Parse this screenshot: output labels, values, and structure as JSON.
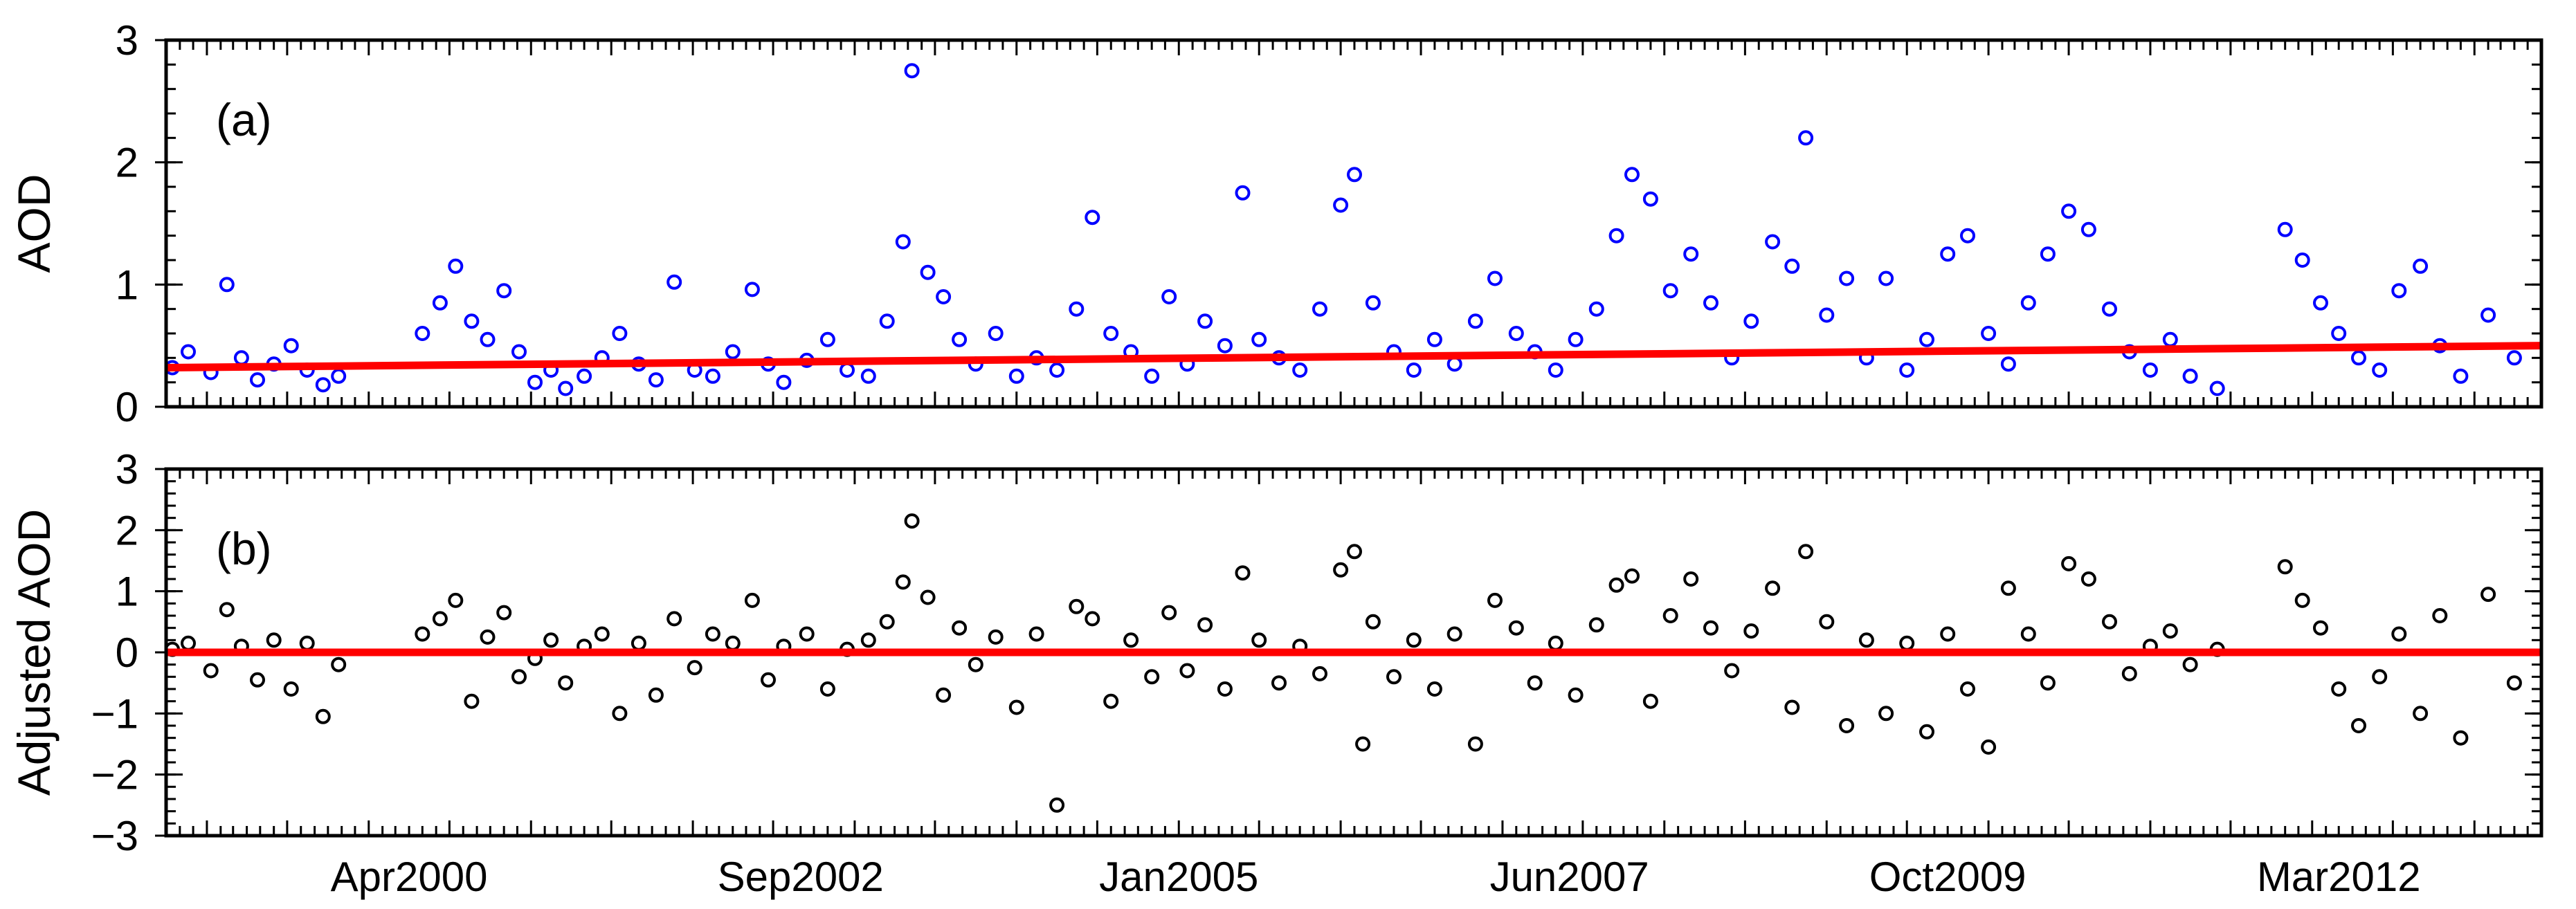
{
  "colors": {
    "panel_a_points": "#0000ff",
    "panel_b_points": "#000000",
    "trend_line": "#ff0000",
    "axis": "#000000",
    "background": "#ffffff"
  },
  "chart_data": [
    {
      "type": "scatter",
      "panel_label": "(a)",
      "title": "",
      "xlabel": "",
      "ylabel": "AOD",
      "xlim": [
        "1998-10-01",
        "2013-06-01"
      ],
      "ylim": [
        0,
        3
      ],
      "yticks": [
        0,
        1,
        2,
        3
      ],
      "grid": false,
      "legend": "none",
      "marker": "open-circle",
      "point_color": "blue",
      "series": [
        {
          "points": [
            [
              "1998-10-15",
              0.32
            ],
            [
              "1998-11-20",
              0.45
            ],
            [
              "1999-01-10",
              0.28
            ],
            [
              "1999-02-15",
              1.0
            ],
            [
              "1999-03-20",
              0.4
            ],
            [
              "1999-04-25",
              0.22
            ],
            [
              "1999-06-01",
              0.35
            ],
            [
              "1999-07-10",
              0.5
            ],
            [
              "1999-08-15",
              0.3
            ],
            [
              "1999-09-20",
              0.18
            ],
            [
              "1999-10-25",
              0.25
            ],
            [
              "2000-05-01",
              0.6
            ],
            [
              "2000-06-10",
              0.85
            ],
            [
              "2000-07-15",
              1.15
            ],
            [
              "2000-08-20",
              0.7
            ],
            [
              "2000-09-25",
              0.55
            ],
            [
              "2000-11-01",
              0.95
            ],
            [
              "2000-12-05",
              0.45
            ],
            [
              "2001-01-10",
              0.2
            ],
            [
              "2001-02-15",
              0.3
            ],
            [
              "2001-03-20",
              0.15
            ],
            [
              "2001-05-01",
              0.25
            ],
            [
              "2001-06-10",
              0.4
            ],
            [
              "2001-07-20",
              0.6
            ],
            [
              "2001-09-01",
              0.35
            ],
            [
              "2001-10-10",
              0.22
            ],
            [
              "2001-11-20",
              1.02
            ],
            [
              "2002-01-05",
              0.3
            ],
            [
              "2002-02-15",
              0.25
            ],
            [
              "2002-04-01",
              0.45
            ],
            [
              "2002-05-15",
              0.96
            ],
            [
              "2002-06-20",
              0.35
            ],
            [
              "2002-07-25",
              0.2
            ],
            [
              "2002-09-15",
              0.38
            ],
            [
              "2002-11-01",
              0.55
            ],
            [
              "2002-12-15",
              0.3
            ],
            [
              "2003-02-01",
              0.25
            ],
            [
              "2003-03-15",
              0.7
            ],
            [
              "2003-04-20",
              1.35
            ],
            [
              "2003-05-10",
              2.75
            ],
            [
              "2003-06-15",
              1.1
            ],
            [
              "2003-07-20",
              0.9
            ],
            [
              "2003-08-25",
              0.55
            ],
            [
              "2003-10-01",
              0.35
            ],
            [
              "2003-11-15",
              0.6
            ],
            [
              "2004-01-01",
              0.25
            ],
            [
              "2004-02-15",
              0.4
            ],
            [
              "2004-04-01",
              0.3
            ],
            [
              "2004-05-15",
              0.8
            ],
            [
              "2004-06-20",
              1.55
            ],
            [
              "2004-08-01",
              0.6
            ],
            [
              "2004-09-15",
              0.45
            ],
            [
              "2004-11-01",
              0.25
            ],
            [
              "2004-12-10",
              0.9
            ],
            [
              "2005-01-20",
              0.35
            ],
            [
              "2005-03-01",
              0.7
            ],
            [
              "2005-04-15",
              0.5
            ],
            [
              "2005-05-25",
              1.75
            ],
            [
              "2005-07-01",
              0.55
            ],
            [
              "2005-08-15",
              0.4
            ],
            [
              "2005-10-01",
              0.3
            ],
            [
              "2005-11-15",
              0.8
            ],
            [
              "2006-01-01",
              1.65
            ],
            [
              "2006-02-01",
              1.9
            ],
            [
              "2006-03-15",
              0.85
            ],
            [
              "2006-05-01",
              0.45
            ],
            [
              "2006-06-15",
              0.3
            ],
            [
              "2006-08-01",
              0.55
            ],
            [
              "2006-09-15",
              0.35
            ],
            [
              "2006-11-01",
              0.7
            ],
            [
              "2006-12-15",
              1.05
            ],
            [
              "2007-02-01",
              0.6
            ],
            [
              "2007-03-15",
              0.45
            ],
            [
              "2007-05-01",
              0.3
            ],
            [
              "2007-06-15",
              0.55
            ],
            [
              "2007-08-01",
              0.8
            ],
            [
              "2007-09-15",
              1.4
            ],
            [
              "2007-10-20",
              1.9
            ],
            [
              "2007-12-01",
              1.7
            ],
            [
              "2008-01-15",
              0.95
            ],
            [
              "2008-03-01",
              1.25
            ],
            [
              "2008-04-15",
              0.85
            ],
            [
              "2008-06-01",
              0.4
            ],
            [
              "2008-07-15",
              0.7
            ],
            [
              "2008-09-01",
              1.35
            ],
            [
              "2008-10-15",
              1.15
            ],
            [
              "2008-11-15",
              2.2
            ],
            [
              "2009-01-01",
              0.75
            ],
            [
              "2009-02-15",
              1.05
            ],
            [
              "2009-04-01",
              0.4
            ],
            [
              "2009-05-15",
              1.05
            ],
            [
              "2009-07-01",
              0.3
            ],
            [
              "2009-08-15",
              0.55
            ],
            [
              "2009-10-01",
              1.25
            ],
            [
              "2009-11-15",
              1.4
            ],
            [
              "2010-01-01",
              0.6
            ],
            [
              "2010-02-15",
              0.35
            ],
            [
              "2010-04-01",
              0.85
            ],
            [
              "2010-05-15",
              1.25
            ],
            [
              "2010-07-01",
              1.6
            ],
            [
              "2010-08-15",
              1.45
            ],
            [
              "2010-10-01",
              0.8
            ],
            [
              "2010-11-15",
              0.45
            ],
            [
              "2011-01-01",
              0.3
            ],
            [
              "2011-02-15",
              0.55
            ],
            [
              "2011-04-01",
              0.25
            ],
            [
              "2011-06-01",
              0.15
            ],
            [
              "2011-11-01",
              1.45
            ],
            [
              "2011-12-10",
              1.2
            ],
            [
              "2012-01-20",
              0.85
            ],
            [
              "2012-03-01",
              0.6
            ],
            [
              "2012-04-15",
              0.4
            ],
            [
              "2012-06-01",
              0.3
            ],
            [
              "2012-07-15",
              0.95
            ],
            [
              "2012-09-01",
              1.15
            ],
            [
              "2012-10-15",
              0.5
            ],
            [
              "2012-12-01",
              0.25
            ],
            [
              "2013-02-01",
              0.75
            ],
            [
              "2013-04-01",
              0.4
            ]
          ]
        }
      ],
      "trend": {
        "x": [
          "1998-10-01",
          "2013-06-01"
        ],
        "y": [
          0.32,
          0.5
        ]
      }
    },
    {
      "type": "scatter",
      "panel_label": "(b)",
      "title": "",
      "xlabel": "",
      "ylabel": "Adjusted AOD",
      "xlim": [
        "1998-10-01",
        "2013-06-01"
      ],
      "ylim": [
        -3,
        3
      ],
      "yticks": [
        -3,
        -2,
        -1,
        0,
        1,
        2,
        3
      ],
      "xticks": [
        "Apr2000",
        "Sep2002",
        "Jan2005",
        "Jun2007",
        "Oct2009",
        "Mar2012"
      ],
      "xtick_dates": [
        "2000-04-01",
        "2002-09-01",
        "2005-01-01",
        "2007-06-01",
        "2009-10-01",
        "2012-03-01"
      ],
      "grid": false,
      "legend": "none",
      "marker": "open-circle",
      "point_color": "black",
      "series": [
        {
          "points": [
            [
              "1998-10-15",
              0.05
            ],
            [
              "1998-11-20",
              0.15
            ],
            [
              "1999-01-10",
              -0.3
            ],
            [
              "1999-02-15",
              0.7
            ],
            [
              "1999-03-20",
              0.1
            ],
            [
              "1999-04-25",
              -0.45
            ],
            [
              "1999-06-01",
              0.2
            ],
            [
              "1999-07-10",
              -0.6
            ],
            [
              "1999-08-15",
              0.15
            ],
            [
              "1999-09-20",
              -1.05
            ],
            [
              "1999-10-25",
              -0.2
            ],
            [
              "2000-05-01",
              0.3
            ],
            [
              "2000-06-10",
              0.55
            ],
            [
              "2000-07-15",
              0.85
            ],
            [
              "2000-08-20",
              -0.8
            ],
            [
              "2000-09-25",
              0.25
            ],
            [
              "2000-11-01",
              0.65
            ],
            [
              "2000-12-05",
              -0.4
            ],
            [
              "2001-01-10",
              -0.1
            ],
            [
              "2001-02-15",
              0.2
            ],
            [
              "2001-03-20",
              -0.5
            ],
            [
              "2001-05-01",
              0.1
            ],
            [
              "2001-06-10",
              0.3
            ],
            [
              "2001-07-20",
              -1.0
            ],
            [
              "2001-09-01",
              0.15
            ],
            [
              "2001-10-10",
              -0.7
            ],
            [
              "2001-11-20",
              0.55
            ],
            [
              "2002-01-05",
              -0.25
            ],
            [
              "2002-02-15",
              0.3
            ],
            [
              "2002-04-01",
              0.15
            ],
            [
              "2002-05-15",
              0.85
            ],
            [
              "2002-06-20",
              -0.45
            ],
            [
              "2002-07-25",
              0.1
            ],
            [
              "2002-09-15",
              0.3
            ],
            [
              "2002-11-01",
              -0.6
            ],
            [
              "2002-12-15",
              0.05
            ],
            [
              "2003-02-01",
              0.2
            ],
            [
              "2003-03-15",
              0.5
            ],
            [
              "2003-04-20",
              1.15
            ],
            [
              "2003-05-10",
              2.15
            ],
            [
              "2003-06-15",
              0.9
            ],
            [
              "2003-07-20",
              -0.7
            ],
            [
              "2003-08-25",
              0.4
            ],
            [
              "2003-10-01",
              -0.2
            ],
            [
              "2003-11-15",
              0.25
            ],
            [
              "2004-01-01",
              -0.9
            ],
            [
              "2004-02-15",
              0.3
            ],
            [
              "2004-04-01",
              -2.5
            ],
            [
              "2004-05-15",
              0.75
            ],
            [
              "2004-06-20",
              0.55
            ],
            [
              "2004-08-01",
              -0.8
            ],
            [
              "2004-09-15",
              0.2
            ],
            [
              "2004-11-01",
              -0.4
            ],
            [
              "2004-12-10",
              0.65
            ],
            [
              "2005-01-20",
              -0.3
            ],
            [
              "2005-03-01",
              0.45
            ],
            [
              "2005-04-15",
              -0.6
            ],
            [
              "2005-05-25",
              1.3
            ],
            [
              "2005-07-01",
              0.2
            ],
            [
              "2005-08-15",
              -0.5
            ],
            [
              "2005-10-01",
              0.1
            ],
            [
              "2005-11-15",
              -0.35
            ],
            [
              "2006-01-01",
              1.35
            ],
            [
              "2006-02-01",
              1.65
            ],
            [
              "2006-02-20",
              -1.5
            ],
            [
              "2006-03-15",
              0.5
            ],
            [
              "2006-05-01",
              -0.4
            ],
            [
              "2006-06-15",
              0.2
            ],
            [
              "2006-08-01",
              -0.6
            ],
            [
              "2006-09-15",
              0.3
            ],
            [
              "2006-11-01",
              -1.5
            ],
            [
              "2006-12-15",
              0.85
            ],
            [
              "2007-02-01",
              0.4
            ],
            [
              "2007-03-15",
              -0.5
            ],
            [
              "2007-05-01",
              0.15
            ],
            [
              "2007-06-15",
              -0.7
            ],
            [
              "2007-08-01",
              0.45
            ],
            [
              "2007-09-15",
              1.1
            ],
            [
              "2007-10-20",
              1.25
            ],
            [
              "2007-12-01",
              -0.8
            ],
            [
              "2008-01-15",
              0.6
            ],
            [
              "2008-03-01",
              1.2
            ],
            [
              "2008-04-15",
              0.4
            ],
            [
              "2008-06-01",
              -0.3
            ],
            [
              "2008-07-15",
              0.35
            ],
            [
              "2008-09-01",
              1.05
            ],
            [
              "2008-10-15",
              -0.9
            ],
            [
              "2008-11-15",
              1.65
            ],
            [
              "2009-01-01",
              0.5
            ],
            [
              "2009-02-15",
              -1.2
            ],
            [
              "2009-04-01",
              0.2
            ],
            [
              "2009-05-15",
              -1.0
            ],
            [
              "2009-07-01",
              0.15
            ],
            [
              "2009-08-15",
              -1.3
            ],
            [
              "2009-10-01",
              0.3
            ],
            [
              "2009-11-15",
              -0.6
            ],
            [
              "2010-01-01",
              -1.55
            ],
            [
              "2010-02-15",
              1.05
            ],
            [
              "2010-04-01",
              0.3
            ],
            [
              "2010-05-15",
              -0.5
            ],
            [
              "2010-07-01",
              1.45
            ],
            [
              "2010-08-15",
              1.2
            ],
            [
              "2010-10-01",
              0.5
            ],
            [
              "2010-11-15",
              -0.35
            ],
            [
              "2011-01-01",
              0.1
            ],
            [
              "2011-02-15",
              0.35
            ],
            [
              "2011-04-01",
              -0.2
            ],
            [
              "2011-06-01",
              0.05
            ],
            [
              "2011-11-01",
              1.4
            ],
            [
              "2011-12-10",
              0.85
            ],
            [
              "2012-01-20",
              0.4
            ],
            [
              "2012-03-01",
              -0.6
            ],
            [
              "2012-04-15",
              -1.2
            ],
            [
              "2012-06-01",
              -0.4
            ],
            [
              "2012-07-15",
              0.3
            ],
            [
              "2012-09-01",
              -1.0
            ],
            [
              "2012-10-15",
              0.6
            ],
            [
              "2012-12-01",
              -1.4
            ],
            [
              "2013-02-01",
              0.95
            ],
            [
              "2013-04-01",
              -0.5
            ]
          ]
        }
      ],
      "trend": {
        "x": [
          "1998-10-01",
          "2013-06-01"
        ],
        "y": [
          0.0,
          0.0
        ]
      }
    }
  ]
}
